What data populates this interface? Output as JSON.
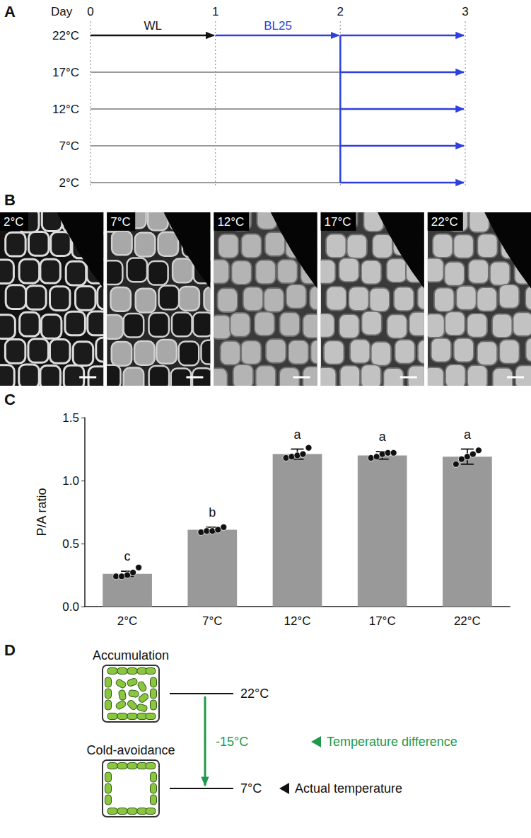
{
  "panel_a": {
    "letter": "A",
    "axis_label": "Day",
    "days": [
      0,
      1,
      2,
      3
    ],
    "temperatures": [
      "22°C",
      "17°C",
      "12°C",
      "7°C",
      "2°C"
    ],
    "white_light": "WL",
    "blue_light": "BL25"
  },
  "panel_b": {
    "letter": "B",
    "images": [
      "2°C",
      "7°C",
      "12°C",
      "17°C",
      "22°C"
    ]
  },
  "chart_data": {
    "panel": "C",
    "type": "bar",
    "categories": [
      "2°C",
      "7°C",
      "12°C",
      "17°C",
      "22°C"
    ],
    "values": [
      0.26,
      0.61,
      1.21,
      1.2,
      1.19
    ],
    "errors": [
      0.02,
      0.02,
      0.04,
      0.03,
      0.06
    ],
    "points": [
      [
        0.24,
        0.24,
        0.25,
        0.27,
        0.31
      ],
      [
        0.59,
        0.6,
        0.6,
        0.61,
        0.63
      ],
      [
        1.18,
        1.19,
        1.2,
        1.21,
        1.26
      ],
      [
        1.18,
        1.19,
        1.21,
        1.22,
        1.22
      ],
      [
        1.13,
        1.17,
        1.19,
        1.21,
        1.24
      ]
    ],
    "letters": [
      "c",
      "b",
      "a",
      "a",
      "a"
    ],
    "color": "#999999",
    "y_label": "P/A ratio",
    "ylim": [
      0,
      1.5
    ],
    "yticks": [
      {
        "value": 0,
        "label": "0.0"
      },
      {
        "value": 0.5,
        "label": "0.5"
      },
      {
        "value": 1,
        "label": "1.0"
      },
      {
        "value": 1.5,
        "label": "1.5"
      }
    ],
    "grid": false
  },
  "panel_d": {
    "letter": "D",
    "top_state": "Accumulation",
    "bottom_state": "Cold-avoidance",
    "top_temperature": "22°C",
    "bottom_temperature": "7°C",
    "difference": "-15°C",
    "difference_label": "Temperature difference",
    "actual_label": "Actual temperature"
  }
}
